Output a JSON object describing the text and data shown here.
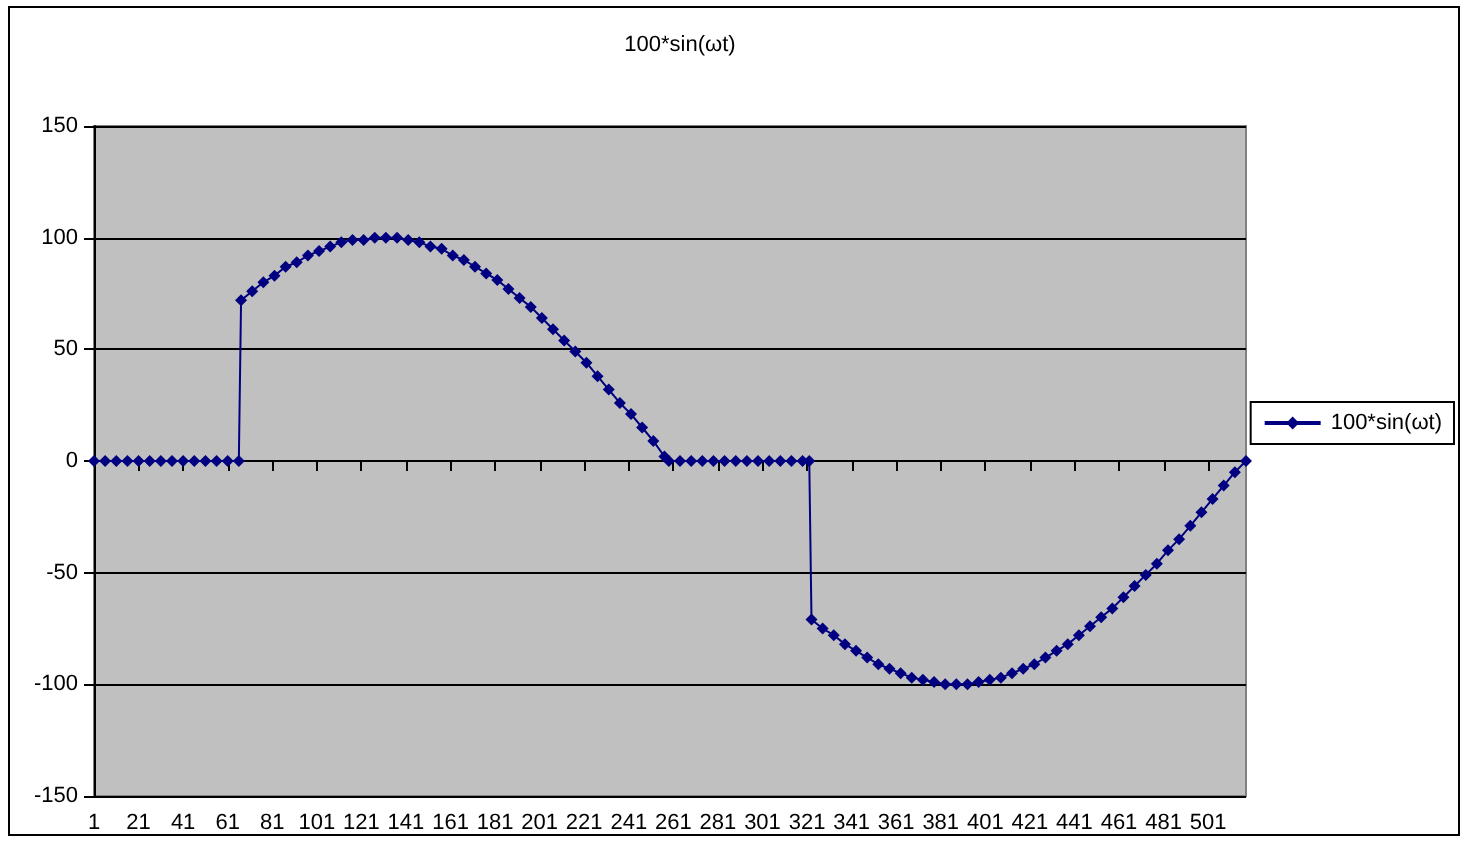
{
  "chart_data": {
    "type": "line",
    "title": "100*sin(ωt)",
    "x": [
      1,
      6,
      11,
      16,
      21,
      26,
      31,
      36,
      41,
      46,
      51,
      56,
      61,
      66,
      67,
      72,
      77,
      82,
      87,
      92,
      97,
      102,
      107,
      112,
      117,
      122,
      127,
      132,
      137,
      142,
      147,
      152,
      157,
      162,
      167,
      172,
      177,
      182,
      187,
      192,
      197,
      202,
      207,
      212,
      217,
      222,
      227,
      232,
      237,
      242,
      247,
      252,
      257,
      259,
      264,
      269,
      274,
      279,
      284,
      289,
      294,
      299,
      304,
      309,
      314,
      319,
      322,
      323,
      328,
      333,
      338,
      343,
      348,
      353,
      358,
      363,
      368,
      373,
      378,
      383,
      388,
      393,
      398,
      403,
      408,
      413,
      418,
      423,
      428,
      433,
      438,
      443,
      448,
      453,
      458,
      463,
      468,
      473,
      478,
      483,
      488,
      493,
      498,
      503,
      508,
      513,
      518
    ],
    "series": [
      {
        "name": "100*sin(ωt)",
        "color": "#000080",
        "values": [
          0,
          0,
          0,
          0,
          0,
          0,
          0,
          0,
          0,
          0,
          0,
          0,
          0,
          0,
          72,
          76,
          80,
          83,
          87,
          89,
          92,
          94,
          96,
          98,
          99,
          99,
          100,
          100,
          100,
          99,
          98,
          96,
          95,
          92,
          90,
          87,
          84,
          81,
          77,
          73,
          69,
          64,
          59,
          54,
          49,
          44,
          38,
          32,
          26,
          21,
          15,
          9,
          2,
          0,
          0,
          0,
          0,
          0,
          0,
          0,
          0,
          0,
          0,
          0,
          0,
          0,
          0,
          -71,
          -75,
          -78,
          -82,
          -85,
          -88,
          -91,
          -93,
          -95,
          -97,
          -98,
          -99,
          -100,
          -100,
          -100,
          -99,
          -98,
          -97,
          -95,
          -93,
          -91,
          -88,
          -85,
          -82,
          -78,
          -74,
          -70,
          -66,
          -61,
          -56,
          -51,
          -46,
          -40,
          -35,
          -29,
          -23,
          -17,
          -11,
          -5,
          0
        ]
      }
    ],
    "xlim": [
      1,
      518
    ],
    "xticks": [
      1,
      21,
      41,
      61,
      81,
      101,
      121,
      141,
      161,
      181,
      201,
      221,
      241,
      261,
      281,
      301,
      321,
      341,
      361,
      381,
      401,
      421,
      441,
      461,
      481,
      501
    ],
    "ylim": [
      -150,
      150
    ],
    "yticks": [
      -150,
      -100,
      -50,
      0,
      50,
      100,
      150
    ],
    "grid": "y",
    "legend": "right",
    "marker": "diamond",
    "line_style": "solid"
  }
}
